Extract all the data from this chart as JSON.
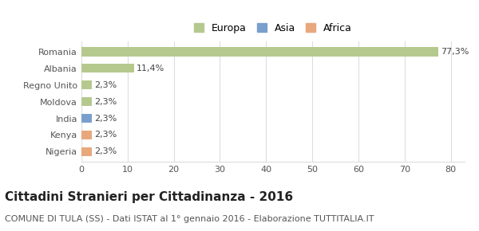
{
  "categories": [
    "Nigeria",
    "Kenya",
    "India",
    "Moldova",
    "Regno Unito",
    "Albania",
    "Romania"
  ],
  "values": [
    2.3,
    2.3,
    2.3,
    2.3,
    2.3,
    11.4,
    77.3
  ],
  "labels": [
    "2,3%",
    "2,3%",
    "2,3%",
    "2,3%",
    "2,3%",
    "11,4%",
    "77,3%"
  ],
  "bar_colors": [
    "#e8a87c",
    "#e8a87c",
    "#7b9fcd",
    "#b5c98e",
    "#b5c98e",
    "#b5c98e",
    "#b5c98e"
  ],
  "legend": [
    {
      "label": "Europa",
      "color": "#b5c98e"
    },
    {
      "label": "Asia",
      "color": "#7b9fcd"
    },
    {
      "label": "Africa",
      "color": "#e8a87c"
    }
  ],
  "xlim": [
    0,
    83
  ],
  "xticks": [
    0,
    10,
    20,
    30,
    40,
    50,
    60,
    70,
    80
  ],
  "title": "Cittadini Stranieri per Cittadinanza - 2016",
  "subtitle": "COMUNE DI TULA (SS) - Dati ISTAT al 1° gennaio 2016 - Elaborazione TUTTITALIA.IT",
  "title_fontsize": 11,
  "subtitle_fontsize": 8,
  "label_fontsize": 8,
  "tick_fontsize": 8,
  "bg_color": "#ffffff",
  "grid_color": "#dddddd"
}
